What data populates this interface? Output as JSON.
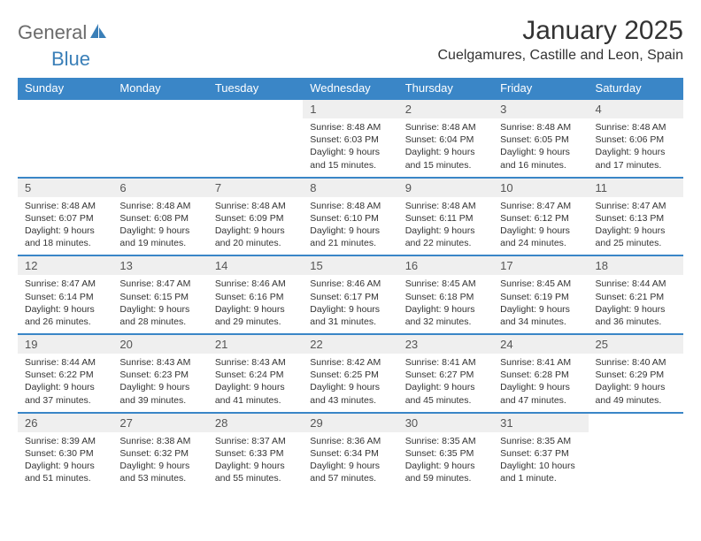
{
  "logo": {
    "part1": "General",
    "part2": "Blue"
  },
  "title": "January 2025",
  "location": "Cuelgamures, Castille and Leon, Spain",
  "colors": {
    "header_bg": "#3a86c7",
    "header_fg": "#ffffff",
    "daynum_bg": "#efefef",
    "border": "#3a86c7",
    "logo_gray": "#6b6b6b",
    "logo_blue": "#3a7fb8"
  },
  "daynames": [
    "Sunday",
    "Monday",
    "Tuesday",
    "Wednesday",
    "Thursday",
    "Friday",
    "Saturday"
  ],
  "weeks": [
    [
      null,
      null,
      null,
      {
        "n": "1",
        "sunrise": "8:48 AM",
        "sunset": "6:03 PM",
        "dh": "9",
        "dm": "15"
      },
      {
        "n": "2",
        "sunrise": "8:48 AM",
        "sunset": "6:04 PM",
        "dh": "9",
        "dm": "15"
      },
      {
        "n": "3",
        "sunrise": "8:48 AM",
        "sunset": "6:05 PM",
        "dh": "9",
        "dm": "16"
      },
      {
        "n": "4",
        "sunrise": "8:48 AM",
        "sunset": "6:06 PM",
        "dh": "9",
        "dm": "17"
      }
    ],
    [
      {
        "n": "5",
        "sunrise": "8:48 AM",
        "sunset": "6:07 PM",
        "dh": "9",
        "dm": "18"
      },
      {
        "n": "6",
        "sunrise": "8:48 AM",
        "sunset": "6:08 PM",
        "dh": "9",
        "dm": "19"
      },
      {
        "n": "7",
        "sunrise": "8:48 AM",
        "sunset": "6:09 PM",
        "dh": "9",
        "dm": "20"
      },
      {
        "n": "8",
        "sunrise": "8:48 AM",
        "sunset": "6:10 PM",
        "dh": "9",
        "dm": "21"
      },
      {
        "n": "9",
        "sunrise": "8:48 AM",
        "sunset": "6:11 PM",
        "dh": "9",
        "dm": "22"
      },
      {
        "n": "10",
        "sunrise": "8:47 AM",
        "sunset": "6:12 PM",
        "dh": "9",
        "dm": "24"
      },
      {
        "n": "11",
        "sunrise": "8:47 AM",
        "sunset": "6:13 PM",
        "dh": "9",
        "dm": "25"
      }
    ],
    [
      {
        "n": "12",
        "sunrise": "8:47 AM",
        "sunset": "6:14 PM",
        "dh": "9",
        "dm": "26"
      },
      {
        "n": "13",
        "sunrise": "8:47 AM",
        "sunset": "6:15 PM",
        "dh": "9",
        "dm": "28"
      },
      {
        "n": "14",
        "sunrise": "8:46 AM",
        "sunset": "6:16 PM",
        "dh": "9",
        "dm": "29"
      },
      {
        "n": "15",
        "sunrise": "8:46 AM",
        "sunset": "6:17 PM",
        "dh": "9",
        "dm": "31"
      },
      {
        "n": "16",
        "sunrise": "8:45 AM",
        "sunset": "6:18 PM",
        "dh": "9",
        "dm": "32"
      },
      {
        "n": "17",
        "sunrise": "8:45 AM",
        "sunset": "6:19 PM",
        "dh": "9",
        "dm": "34"
      },
      {
        "n": "18",
        "sunrise": "8:44 AM",
        "sunset": "6:21 PM",
        "dh": "9",
        "dm": "36"
      }
    ],
    [
      {
        "n": "19",
        "sunrise": "8:44 AM",
        "sunset": "6:22 PM",
        "dh": "9",
        "dm": "37"
      },
      {
        "n": "20",
        "sunrise": "8:43 AM",
        "sunset": "6:23 PM",
        "dh": "9",
        "dm": "39"
      },
      {
        "n": "21",
        "sunrise": "8:43 AM",
        "sunset": "6:24 PM",
        "dh": "9",
        "dm": "41"
      },
      {
        "n": "22",
        "sunrise": "8:42 AM",
        "sunset": "6:25 PM",
        "dh": "9",
        "dm": "43"
      },
      {
        "n": "23",
        "sunrise": "8:41 AM",
        "sunset": "6:27 PM",
        "dh": "9",
        "dm": "45"
      },
      {
        "n": "24",
        "sunrise": "8:41 AM",
        "sunset": "6:28 PM",
        "dh": "9",
        "dm": "47"
      },
      {
        "n": "25",
        "sunrise": "8:40 AM",
        "sunset": "6:29 PM",
        "dh": "9",
        "dm": "49"
      }
    ],
    [
      {
        "n": "26",
        "sunrise": "8:39 AM",
        "sunset": "6:30 PM",
        "dh": "9",
        "dm": "51"
      },
      {
        "n": "27",
        "sunrise": "8:38 AM",
        "sunset": "6:32 PM",
        "dh": "9",
        "dm": "53"
      },
      {
        "n": "28",
        "sunrise": "8:37 AM",
        "sunset": "6:33 PM",
        "dh": "9",
        "dm": "55"
      },
      {
        "n": "29",
        "sunrise": "8:36 AM",
        "sunset": "6:34 PM",
        "dh": "9",
        "dm": "57"
      },
      {
        "n": "30",
        "sunrise": "8:35 AM",
        "sunset": "6:35 PM",
        "dh": "9",
        "dm": "59"
      },
      {
        "n": "31",
        "sunrise": "8:35 AM",
        "sunset": "6:37 PM",
        "dh": "10",
        "dm": "1",
        "single_minute": true
      },
      null
    ]
  ]
}
